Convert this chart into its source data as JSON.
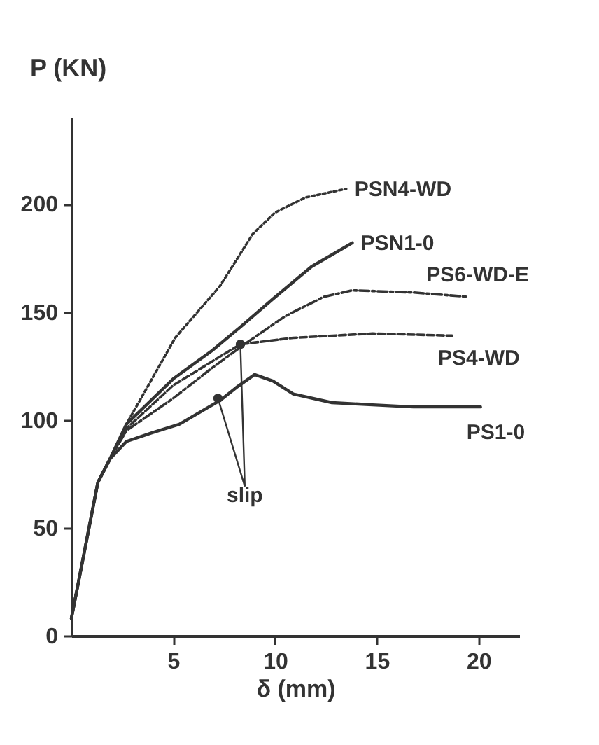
{
  "chart_data": {
    "type": "line",
    "xlabel": "δ (mm)",
    "ylabel": "P (KN)",
    "xlim": [
      0,
      22
    ],
    "ylim": [
      0,
      240
    ],
    "xticks": [
      5,
      10,
      15,
      20
    ],
    "yticks": [
      0,
      50,
      100,
      150,
      200
    ],
    "grid": false,
    "marker": "none",
    "series": [
      {
        "name": "PSN4-WD",
        "color": "#333333",
        "line_style": "dotted",
        "x": [
          0,
          1.3,
          1.9,
          2.7,
          5.1,
          7.3,
          8.9,
          10,
          11.5,
          13.5
        ],
        "values": [
          8,
          71,
          82,
          98,
          138,
          162,
          186,
          196,
          203,
          207
        ]
      },
      {
        "name": "PSN1-0",
        "color": "#333333",
        "line_style": "solid",
        "x": [
          0,
          1.3,
          1.9,
          2.7,
          5.0,
          6.9,
          8.3,
          9.9,
          11.8,
          13.8
        ],
        "values": [
          8,
          71,
          82,
          98,
          119,
          132,
          143,
          156,
          171,
          182
        ]
      },
      {
        "name": "PS6-WD-E",
        "color": "#333333",
        "line_style": "dashdot",
        "x": [
          0,
          1.3,
          1.9,
          2.7,
          5.0,
          6.9,
          8.5,
          10.5,
          12.4,
          13.8,
          16.8,
          19.5
        ],
        "values": [
          8,
          71,
          82,
          95,
          110,
          124,
          135,
          148,
          157,
          160,
          159,
          157
        ]
      },
      {
        "name": "PS4-WD",
        "color": "#333333",
        "line_style": "dashed",
        "x": [
          0,
          1.3,
          1.9,
          2.7,
          5.0,
          6.9,
          8.3,
          10.9,
          14.8,
          18.7
        ],
        "values": [
          8,
          71,
          82,
          96,
          116,
          127,
          135,
          138,
          140,
          139
        ]
      },
      {
        "name": "PS1-0",
        "color": "#333333",
        "line_style": "solid",
        "x": [
          0,
          1.3,
          1.9,
          2.7,
          3.95,
          5.3,
          7.3,
          8.1,
          9.0,
          9.9,
          10.9,
          12.8,
          14.8,
          16.8,
          18.8,
          20.1
        ],
        "values": [
          8,
          71,
          82,
          90,
          94,
          98,
          109,
          115,
          121,
          118,
          112,
          108,
          107,
          106,
          106,
          106
        ]
      },
      {
        "type": "scatter",
        "color": "#333333",
        "marker": "circle",
        "x": [
          7.2,
          8.3
        ],
        "values": [
          110,
          135
        ]
      }
    ],
    "annotations": [
      {
        "text": "slip",
        "x": 7.2,
        "y": 110
      }
    ]
  }
}
